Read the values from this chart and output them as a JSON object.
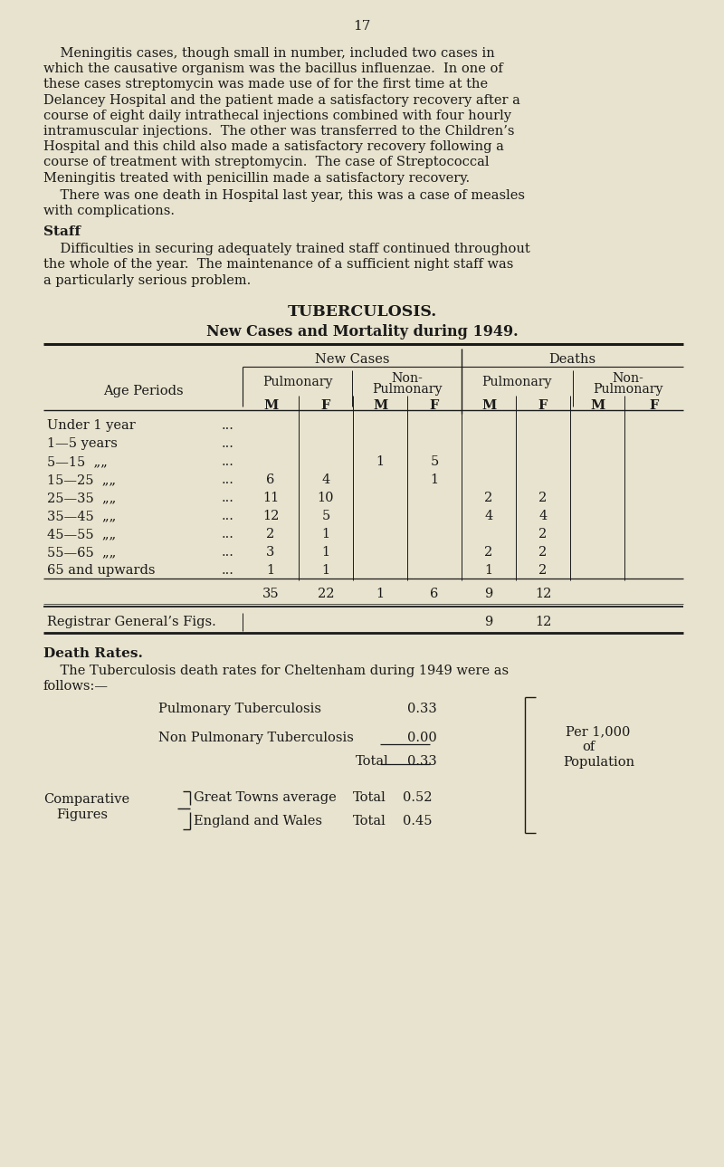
{
  "bg_color": "#e8e3ce",
  "text_color": "#1a1a1a",
  "page_number": "17",
  "para1_lines": [
    "    Meningitis cases, though small in number, included two cases in",
    "which the causative organism was the bacillus influenzae.  In one of",
    "these cases streptomycin was made use of for the first time at the",
    "Delancey Hospital and the patient made a satisfactory recovery after a",
    "course of eight daily intrathecal injections combined with four hourly",
    "intramuscular injections.  The other was transferred to the Children’s",
    "Hospital and this child also made a satisfactory recovery following a",
    "course of treatment with streptomycin.  The case of Streptococcal",
    "Meningitis treated with penicillin made a satisfactory recovery."
  ],
  "para2_lines": [
    "    There was one death in Hospital last year, this was a case of measles",
    "with complications."
  ],
  "staff_heading": "Staff",
  "staff_lines": [
    "    Difficulties in securing adequately trained staff continued throughout",
    "the whole of the year.  The maintenance of a sufficient night staff was",
    "a particularly serious problem."
  ],
  "tb_heading": "TUBERCULOSIS.",
  "tb_subheading": "New Cases and Mortality during 1949.",
  "age_periods": [
    [
      "Under 1 year",
      "..."
    ],
    [
      "1—5 years",
      "..."
    ],
    [
      "5—15  „„",
      "..."
    ],
    [
      "15—25  „„",
      "..."
    ],
    [
      "25—35  „„",
      "..."
    ],
    [
      "35—45  „„",
      "..."
    ],
    [
      "45—55  „„",
      "..."
    ],
    [
      "55—65  „„",
      "..."
    ],
    [
      "65 and upwards",
      "..."
    ]
  ],
  "table_data": [
    [
      "",
      "",
      "",
      "",
      "",
      "",
      "",
      ""
    ],
    [
      "",
      "",
      "",
      "",
      "",
      "",
      "",
      ""
    ],
    [
      "",
      "",
      "1",
      "5",
      "",
      "",
      "",
      ""
    ],
    [
      "6",
      "4",
      "",
      "1",
      "",
      "",
      "",
      ""
    ],
    [
      "11",
      "10",
      "",
      "",
      "2",
      "2",
      "",
      ""
    ],
    [
      "12",
      "5",
      "",
      "",
      "4",
      "4",
      "",
      ""
    ],
    [
      "2",
      "1",
      "",
      "",
      "",
      "2",
      "",
      ""
    ],
    [
      "3",
      "1",
      "",
      "",
      "2",
      "2",
      "",
      ""
    ],
    [
      "1",
      "1",
      "",
      "",
      "1",
      "2",
      "",
      ""
    ]
  ],
  "table_totals": [
    "35",
    "22",
    "1",
    "6",
    "9",
    "12",
    "",
    ""
  ],
  "registrar_row": [
    "",
    "",
    "",
    "",
    "9",
    "12",
    "",
    ""
  ],
  "death_rates_heading": "Death Rates.",
  "death_rates_lines": [
    "    The Tuberculosis death rates for Cheltenham during 1949 were as",
    "follows:—"
  ],
  "pulmonary_label": "Pulmonary Tuberculosis",
  "pulmonary_value": "0.33",
  "non_pulmonary_label": "Non Pulmonary Tuberculosis",
  "non_pulmonary_value": "0.00",
  "total_label": "Total",
  "total_value": "0.33",
  "per_1000_text": [
    "Per 1,000",
    "of",
    "Population"
  ],
  "comp_label_lines": [
    "Comparative",
    "Figures"
  ],
  "great_towns_label": "Great Towns average",
  "great_towns_value": "0.52",
  "england_wales_label": "England and Wales",
  "england_wales_value": "0.45",
  "total_word": "Total"
}
